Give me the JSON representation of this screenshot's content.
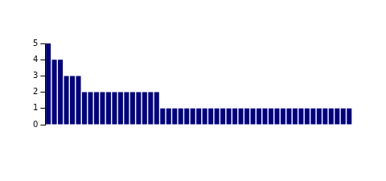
{
  "chart_data": {
    "type": "bar",
    "categories": [
      null,
      null,
      null,
      null,
      null,
      null,
      null,
      null,
      null,
      null,
      null,
      null,
      null,
      null,
      null,
      null,
      null,
      null,
      null,
      null,
      null,
      null,
      null,
      null,
      null,
      null,
      null,
      null,
      null,
      null,
      null,
      null,
      null,
      null,
      null,
      null,
      null,
      null,
      null,
      null,
      null,
      null,
      null,
      null,
      null,
      null,
      null,
      null,
      null,
      null,
      null
    ],
    "values": [
      5,
      4,
      4,
      3,
      3,
      3,
      2,
      2,
      2,
      2,
      2,
      2,
      2,
      2,
      2,
      2,
      2,
      2,
      2,
      1,
      1,
      1,
      1,
      1,
      1,
      1,
      1,
      1,
      1,
      1,
      1,
      1,
      1,
      1,
      1,
      1,
      1,
      1,
      1,
      1,
      1,
      1,
      1,
      1,
      1,
      1,
      1,
      1,
      1,
      1,
      1
    ],
    "color": "#000080",
    "ylim": [
      0,
      5
    ],
    "yticks": [
      0,
      1,
      2,
      3,
      4,
      5
    ],
    "grid": false,
    "tick_labels": "y"
  }
}
